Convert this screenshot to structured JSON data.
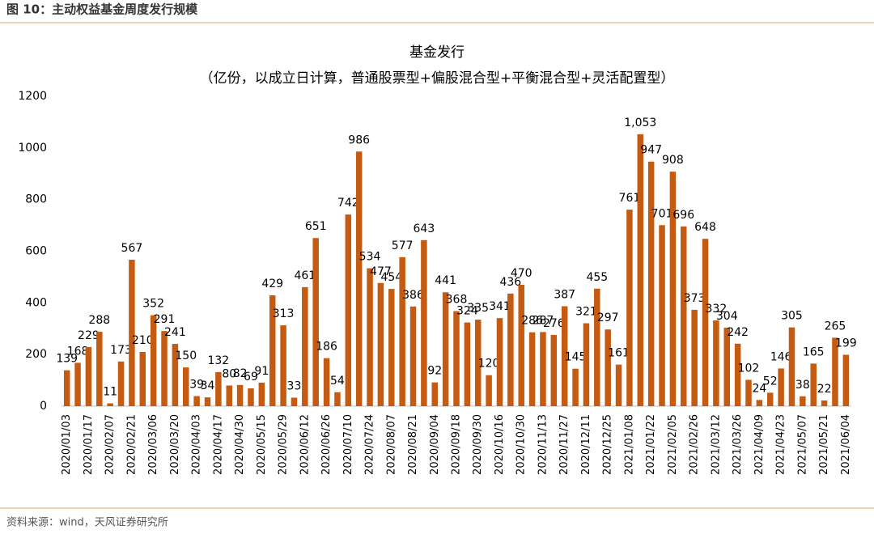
{
  "header": {
    "title": "图 10：主动权益基金周度发行规模"
  },
  "source": "资料来源：wind，天风证券研究所",
  "chart_data": {
    "type": "bar",
    "title": "基金发行",
    "subtitle": "（亿份，以成立日计算，普通股票型+偏股混合型+平衡混合型+灵活配置型）",
    "color": "#c55a11",
    "categories": [
      "2020/01/03",
      null,
      "2020/01/17",
      null,
      "2020/02/07",
      null,
      "2020/02/21",
      null,
      "2020/03/06",
      null,
      "2020/03/20",
      null,
      "2020/04/03",
      null,
      "2020/04/17",
      null,
      "2020/04/30",
      null,
      "2020/05/15",
      null,
      "2020/05/29",
      null,
      "2020/06/12",
      null,
      "2020/06/26",
      null,
      "2020/07/10",
      null,
      "2020/07/24",
      null,
      "2020/08/07",
      null,
      "2020/08/21",
      null,
      "2020/09/04",
      null,
      "2020/09/18",
      null,
      "2020/09/30",
      null,
      "2020/10/16",
      null,
      "2020/10/30",
      null,
      "2020/11/13",
      null,
      "2020/11/27",
      null,
      "2020/12/11",
      null,
      "2020/12/25",
      null,
      "2021/01/08",
      null,
      "2021/01/22",
      null,
      "2021/02/05",
      null,
      "2021/02/26",
      null,
      "2021/03/12",
      null,
      "2021/03/26",
      null,
      "2021/04/09",
      null,
      "2021/04/23",
      null,
      "2021/05/07",
      null,
      "2021/05/21",
      null,
      "2021/06/04"
    ],
    "values": [
      139,
      168,
      229,
      288,
      11,
      173,
      567,
      210,
      352,
      291,
      241,
      150,
      39,
      34,
      132,
      80,
      82,
      69,
      91,
      429,
      313,
      33,
      461,
      651,
      186,
      54,
      742,
      986,
      534,
      477,
      454,
      577,
      386,
      643,
      92,
      441,
      368,
      324,
      335,
      120,
      341,
      436,
      470,
      286,
      287,
      276,
      387,
      145,
      321,
      455,
      297,
      161,
      761,
      1053,
      947,
      701,
      908,
      696,
      373,
      648,
      332,
      304,
      242,
      102,
      24,
      52,
      146,
      305,
      38,
      165,
      22,
      265,
      199
    ],
    "value_labels": [
      "139",
      "168",
      "229",
      "288",
      "11",
      "173",
      "567",
      "210",
      "352",
      "291",
      "241",
      "150",
      "39",
      "34",
      "132",
      "80",
      "82",
      "69",
      "91",
      "429",
      "313",
      "33",
      "461",
      "651",
      "186",
      "54",
      "742",
      "986",
      "534",
      "477",
      "454",
      "577",
      "386",
      "643",
      "92",
      "441",
      "368",
      "324",
      "335",
      "120",
      "341",
      "436",
      "470",
      "286",
      "287",
      "276",
      "387",
      "145",
      "321",
      "455",
      "297",
      "161",
      "761",
      "1,053",
      "947",
      "701",
      "908",
      "696",
      "373",
      "648",
      "332",
      "304",
      "242",
      "102",
      "24",
      "52",
      "146",
      "305",
      "38",
      "165",
      "22",
      "265",
      "199"
    ],
    "ylim": [
      0,
      1200
    ],
    "yticks": [
      0,
      200,
      400,
      600,
      800,
      1000,
      1200
    ],
    "grid": false
  }
}
